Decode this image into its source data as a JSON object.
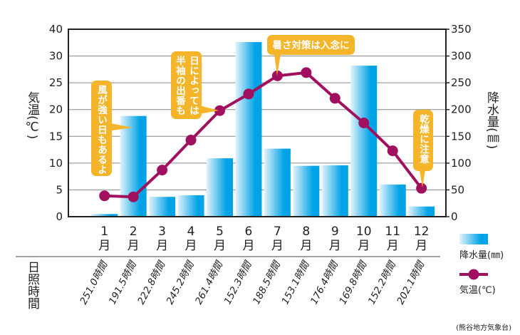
{
  "chart_data": {
    "type": "bar+line",
    "categories": [
      "1月",
      "2月",
      "3月",
      "4月",
      "5月",
      "6月",
      "7月",
      "8月",
      "9月",
      "10月",
      "11月",
      "12月"
    ],
    "month_numbers": [
      "1",
      "2",
      "3",
      "4",
      "5",
      "6",
      "7",
      "8",
      "9",
      "10",
      "11",
      "12"
    ],
    "month_suffix": "月",
    "series": [
      {
        "name": "降水量(㎜)",
        "type": "bar",
        "axis": "right",
        "values": [
          5,
          188,
          37,
          40,
          109,
          326,
          127,
          95,
          96,
          282,
          60,
          19
        ]
      },
      {
        "name": "気温(℃)",
        "type": "line",
        "axis": "left",
        "values": [
          3.9,
          3.7,
          8.7,
          14.3,
          19.8,
          22.9,
          26.3,
          26.9,
          22.1,
          17.5,
          12.3,
          5.3
        ]
      }
    ],
    "left_axis": {
      "label": "気温(℃)",
      "ticks": [
        "0",
        "5",
        "10",
        "15",
        "20",
        "25",
        "30",
        "40"
      ],
      "range": [
        0,
        35
      ]
    },
    "right_axis": {
      "label": "降水量(㎜)",
      "ticks": [
        "0",
        "50",
        "100",
        "150",
        "200",
        "250",
        "300",
        "350"
      ],
      "range": [
        0,
        350
      ]
    },
    "grid": true,
    "legend_placement": "bottom-right",
    "sunshine": {
      "label": "日照時間",
      "values": [
        "251.0時間",
        "191.5時間",
        "222.8時間",
        "245.2時間",
        "261.4時間",
        "152.3時間",
        "188.5時間",
        "153.1時間",
        "176.4時間",
        "169.8時間",
        "152.2時間",
        "202.1時間"
      ]
    },
    "annotations": [
      {
        "lines": [
          "風が強い日もあるよ"
        ],
        "month": "2月"
      },
      {
        "lines": [
          "日によっては",
          "半袖の出番も"
        ],
        "month": "5月"
      },
      {
        "lines": [
          "暑さ対策は入念に"
        ],
        "month": "7月"
      },
      {
        "lines": [
          "乾燥に注意"
        ],
        "month": "12月"
      }
    ],
    "source": "(熊谷地方気象台)",
    "colors": {
      "bar_light": "#d8eefb",
      "bar_dark": "#00a3e6",
      "line": "#a0105e",
      "callout": "#f5b52a",
      "grid": "#888888"
    }
  }
}
